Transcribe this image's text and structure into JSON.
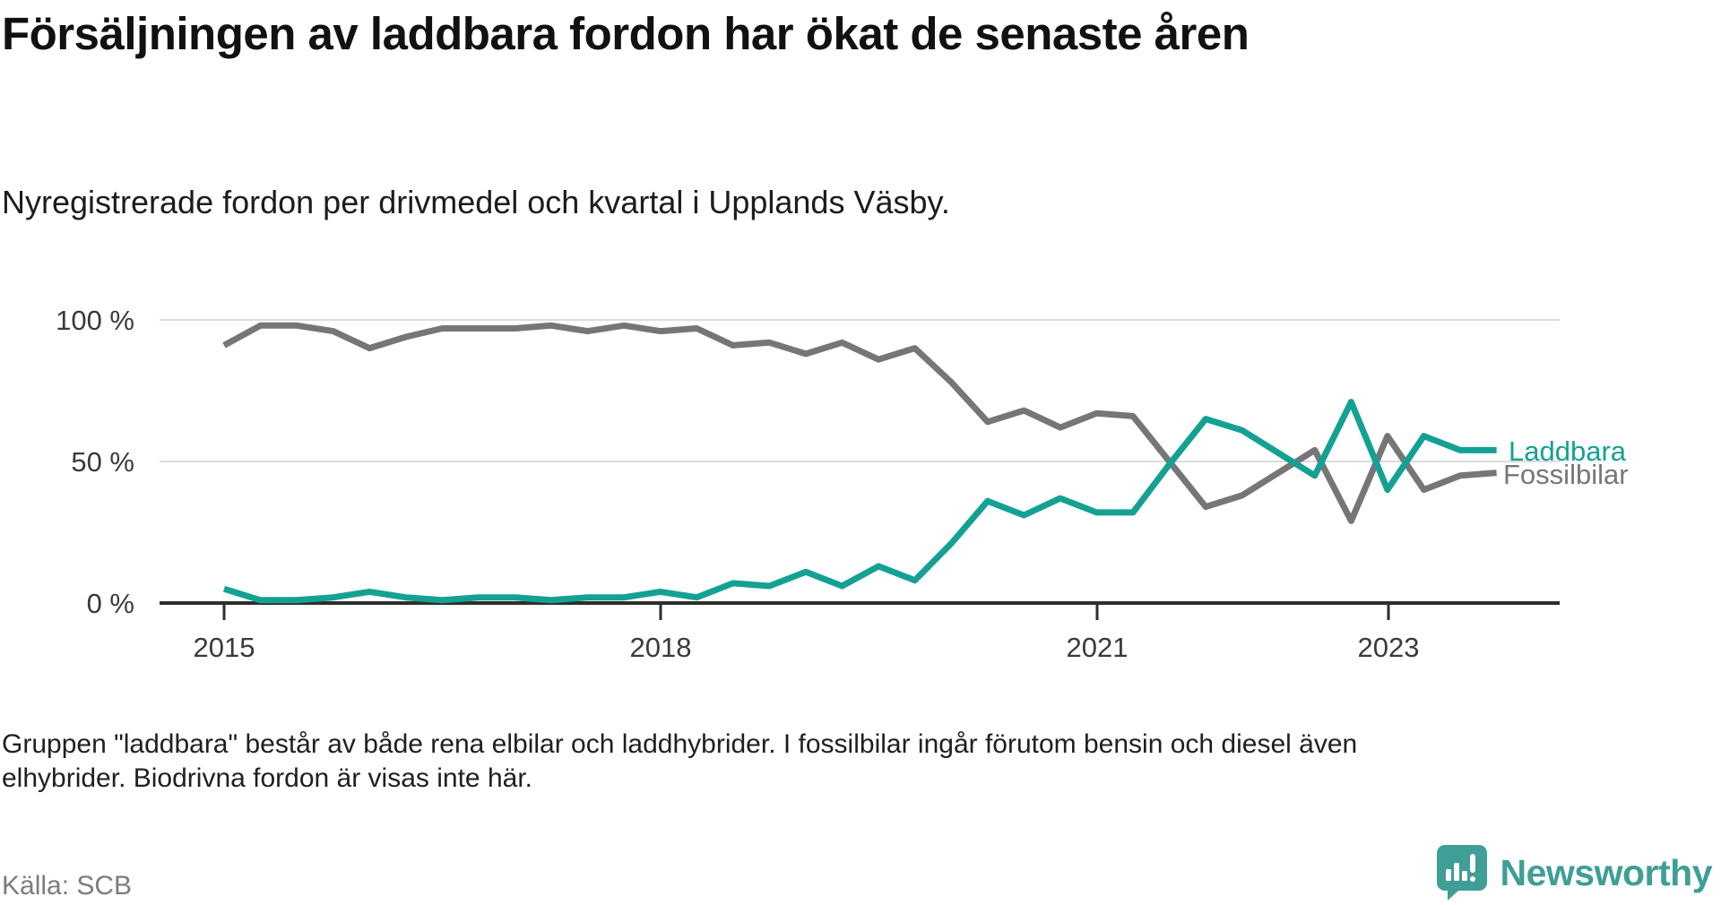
{
  "header": {
    "title": "Försäljningen av laddbara fordon har ökat de senaste åren",
    "subtitle": "Nyregistrerade fordon per drivmedel och kvartal i Upplands Väsby."
  },
  "chart_data": {
    "type": "line",
    "unit": "%",
    "ylim": [
      0,
      100
    ],
    "grid": "horizontal",
    "legend_position": "right-of-line-end",
    "y_ticks": [
      {
        "label": "100 %",
        "value": 100
      },
      {
        "label": "50 %",
        "value": 50
      },
      {
        "label": "0 %",
        "value": 0
      }
    ],
    "x_ticks": [
      {
        "label": "2015",
        "quarter_index": 0
      },
      {
        "label": "2018",
        "quarter_index": 12
      },
      {
        "label": "2021",
        "quarter_index": 24
      },
      {
        "label": "2023",
        "quarter_index": 32
      }
    ],
    "quarters": [
      "2015Q1",
      "2015Q2",
      "2015Q3",
      "2015Q4",
      "2016Q1",
      "2016Q2",
      "2016Q3",
      "2016Q4",
      "2017Q1",
      "2017Q2",
      "2017Q3",
      "2017Q4",
      "2018Q1",
      "2018Q2",
      "2018Q3",
      "2018Q4",
      "2019Q1",
      "2019Q2",
      "2019Q3",
      "2019Q4",
      "2020Q1",
      "2020Q2",
      "2020Q3",
      "2020Q4",
      "2021Q1",
      "2021Q2",
      "2021Q3",
      "2021Q4",
      "2022Q1",
      "2022Q2",
      "2022Q3",
      "2022Q4",
      "2023Q1",
      "2023Q2",
      "2023Q3",
      "2023Q4"
    ],
    "series": [
      {
        "name": "Laddbara",
        "color": "#14a193",
        "values": [
          5,
          1,
          1,
          2,
          4,
          2,
          1,
          2,
          2,
          1,
          2,
          2,
          4,
          2,
          7,
          6,
          11,
          6,
          13,
          8,
          21,
          36,
          31,
          37,
          32,
          32,
          49,
          65,
          61,
          53,
          45,
          71,
          40,
          59,
          54,
          54
        ]
      },
      {
        "name": "Fossilbilar",
        "color": "#767676",
        "values": [
          91,
          98,
          98,
          96,
          90,
          94,
          97,
          97,
          97,
          98,
          96,
          98,
          96,
          97,
          91,
          92,
          88,
          92,
          86,
          90,
          78,
          64,
          68,
          62,
          67,
          66,
          50,
          34,
          38,
          46,
          54,
          29,
          59,
          40,
          45,
          46
        ]
      }
    ]
  },
  "footer": {
    "note_lines": [
      "Gruppen \"laddbara\" består av både rena elbilar och laddhybrider. I fossilbilar ingår förutom bensin och diesel även",
      "elhybrider. Biodrivna fordon är visas inte här."
    ],
    "source": "Källa: SCB"
  },
  "branding": {
    "logo_text": "Newsworthy",
    "logo_color": "#3f9e96",
    "logo_icon": "bar-chart-speech-bubble-icon"
  }
}
